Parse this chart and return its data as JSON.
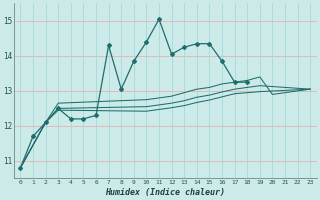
{
  "x": [
    0,
    1,
    2,
    3,
    4,
    5,
    6,
    7,
    8,
    9,
    10,
    11,
    12,
    13,
    14,
    15,
    16,
    17,
    18,
    19,
    20,
    21,
    22,
    23
  ],
  "line_main": [
    10.8,
    11.7,
    12.1,
    12.5,
    12.2,
    12.2,
    12.3,
    14.3,
    13.05,
    13.85,
    14.4,
    15.05,
    14.05,
    14.25,
    14.35,
    14.35,
    13.85,
    13.25,
    13.25,
    null,
    null,
    null,
    null,
    null
  ],
  "line_top": [
    10.8,
    null,
    12.1,
    12.65,
    null,
    null,
    null,
    null,
    null,
    null,
    12.75,
    null,
    12.85,
    12.95,
    13.05,
    13.1,
    13.2,
    13.25,
    13.3,
    13.4,
    12.9,
    12.95,
    null,
    13.05
  ],
  "line_mid": [
    10.8,
    null,
    12.1,
    12.5,
    null,
    null,
    null,
    null,
    null,
    null,
    12.55,
    null,
    12.65,
    12.72,
    12.82,
    12.88,
    12.97,
    13.05,
    13.1,
    13.15,
    null,
    null,
    null,
    13.05
  ],
  "line_bot": [
    10.8,
    null,
    12.1,
    12.45,
    null,
    null,
    null,
    null,
    null,
    null,
    12.42,
    null,
    12.52,
    12.58,
    12.67,
    12.74,
    12.83,
    12.92,
    12.95,
    12.98,
    null,
    null,
    null,
    13.05
  ],
  "bg_color": "#cceae8",
  "line_color": "#1e6e6e",
  "grid_color_h": "#e8b0b0",
  "grid_color_v": "#a8d8d8",
  "xlabel": "Humidex (Indice chaleur)",
  "ylim": [
    10.5,
    15.5
  ],
  "xlim": [
    -0.5,
    23.5
  ],
  "yticks": [
    11,
    12,
    13,
    14,
    15
  ],
  "xticks": [
    0,
    1,
    2,
    3,
    4,
    5,
    6,
    7,
    8,
    9,
    10,
    11,
    12,
    13,
    14,
    15,
    16,
    17,
    18,
    19,
    20,
    21,
    22,
    23
  ]
}
